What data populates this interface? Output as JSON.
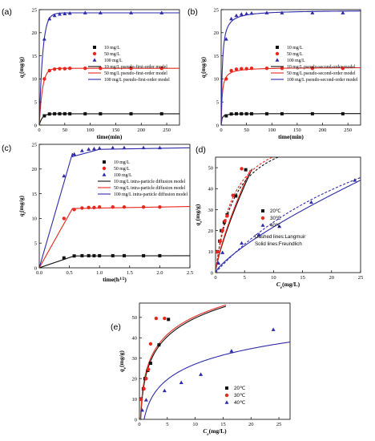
{
  "panels": {
    "a": {
      "letter": "(a)",
      "xlabel": "time(min)",
      "ylabel": "qt(mg/g)"
    },
    "b": {
      "letter": "(b)",
      "xlabel": "time(min)",
      "ylabel": "qt(mg/g)"
    },
    "c": {
      "letter": "(c)",
      "xlabel": "time(h^1/2)",
      "ylabel": "qt(mg/g)"
    },
    "d": {
      "letter": "(d)",
      "xlabel": "Ce(mg/L)",
      "ylabel": "qe(mg/g)",
      "note1": "Dashed lines:Langmuir",
      "note2": "Solid  lines:Freundlich"
    },
    "e": {
      "letter": "(e)",
      "xlabel": "Ce(mg/L)",
      "ylabel": "qe(mg/g)"
    }
  },
  "colors": {
    "black": "#111111",
    "red": "#e8281e",
    "blue": "#2d2ba8"
  },
  "chart_data": [
    {
      "id": "a",
      "type": "scatter",
      "xlim": [
        0,
        275
      ],
      "ylim": [
        0,
        25
      ],
      "xticks": [
        0,
        50,
        100,
        150,
        200,
        250
      ],
      "yticks": [
        0,
        5,
        10,
        15,
        20,
        25
      ],
      "grid": false,
      "legend": "center-right",
      "legend_entries": [
        "10 mg/L",
        "50 mg/L",
        "100 mg/L",
        "10 mg/L pseudo-first-order model",
        "50 mg/L pseudo-first-order model",
        "100 mg/L pseudo-first-order model"
      ],
      "series": [
        {
          "color": "black",
          "marker": "square",
          "x": [
            10,
            20,
            30,
            40,
            50,
            60,
            90,
            120,
            180,
            240
          ],
          "y": [
            2.0,
            2.4,
            2.45,
            2.45,
            2.45,
            2.45,
            2.45,
            2.45,
            2.45,
            2.45
          ]
        },
        {
          "color": "red",
          "marker": "circle",
          "x": [
            10,
            20,
            30,
            40,
            50,
            60,
            90,
            120,
            180,
            240
          ],
          "y": [
            10.0,
            11.8,
            12.1,
            12.2,
            12.2,
            12.3,
            12.3,
            12.3,
            12.3,
            12.3
          ]
        },
        {
          "color": "blue",
          "marker": "triangle",
          "x": [
            10,
            20,
            30,
            40,
            50,
            60,
            90,
            120,
            180,
            240
          ],
          "y": [
            18.6,
            23.0,
            23.7,
            24.0,
            24.1,
            24.2,
            24.3,
            24.3,
            24.3,
            24.3
          ]
        }
      ],
      "models": [
        {
          "color": "black",
          "kind": "pfo",
          "qe": 2.45,
          "k": 0.17
        },
        {
          "color": "red",
          "kind": "pfo",
          "qe": 12.3,
          "k": 0.16
        },
        {
          "color": "blue",
          "kind": "pfo",
          "qe": 24.3,
          "k": 0.15
        }
      ]
    },
    {
      "id": "b",
      "type": "scatter",
      "xlim": [
        0,
        275
      ],
      "ylim": [
        0,
        25
      ],
      "xticks": [
        0,
        50,
        100,
        150,
        200,
        250
      ],
      "yticks": [
        0,
        5,
        10,
        15,
        20,
        25
      ],
      "grid": false,
      "legend": "center-right",
      "legend_entries": [
        "10 mg/L",
        "50 mg/L",
        "100 mg/L",
        "10 mg/L pseudo-second-order model",
        "50 mg/L pseudo-second-order model",
        "100 mg/L pseudo-second-order model"
      ],
      "series": [
        {
          "color": "black",
          "marker": "square",
          "x": [
            10,
            20,
            30,
            40,
            50,
            60,
            90,
            120,
            180,
            240
          ],
          "y": [
            2.0,
            2.4,
            2.45,
            2.45,
            2.45,
            2.45,
            2.45,
            2.45,
            2.45,
            2.45
          ]
        },
        {
          "color": "red",
          "marker": "circle",
          "x": [
            10,
            20,
            30,
            40,
            50,
            60,
            90,
            120,
            180,
            240
          ],
          "y": [
            10.0,
            11.8,
            12.1,
            12.2,
            12.2,
            12.3,
            12.3,
            12.3,
            12.3,
            12.3
          ]
        },
        {
          "color": "blue",
          "marker": "triangle",
          "x": [
            10,
            20,
            30,
            40,
            50,
            60,
            90,
            120,
            180,
            240
          ],
          "y": [
            18.6,
            23.0,
            23.7,
            24.0,
            24.1,
            24.2,
            24.3,
            24.3,
            24.3,
            24.3
          ]
        }
      ],
      "models": [
        {
          "color": "black",
          "kind": "pso",
          "qe": 2.5,
          "k": 0.3
        },
        {
          "color": "red",
          "kind": "pso",
          "qe": 12.5,
          "k": 0.04
        },
        {
          "color": "blue",
          "kind": "pso",
          "qe": 24.9,
          "k": 0.018
        }
      ]
    },
    {
      "id": "c",
      "type": "scatter",
      "xlim": [
        0,
        2.5
      ],
      "ylim": [
        0,
        25
      ],
      "xticks": [
        0.0,
        0.5,
        1.0,
        1.5,
        2.0,
        2.5
      ],
      "yticks": [
        0,
        5,
        10,
        15,
        20,
        25
      ],
      "grid": false,
      "legend": "center-right",
      "legend_entries": [
        "10 mg/L",
        "50 mg/L",
        "100 mg/L",
        "10 mg/L intra-particle diffusion model",
        "50 mg/L intra-particle diffusion model",
        "100 mg/L intra-particle diffusion model"
      ],
      "series": [
        {
          "color": "black",
          "marker": "square",
          "x": [
            0.41,
            0.58,
            0.71,
            0.82,
            0.91,
            1.0,
            1.22,
            1.41,
            1.73,
            2.0
          ],
          "y": [
            2.0,
            2.4,
            2.45,
            2.45,
            2.45,
            2.45,
            2.45,
            2.45,
            2.45,
            2.45
          ]
        },
        {
          "color": "red",
          "marker": "circle",
          "x": [
            0.41,
            0.58,
            0.71,
            0.82,
            0.91,
            1.0,
            1.22,
            1.41,
            1.73,
            2.0
          ],
          "y": [
            10.0,
            11.8,
            12.1,
            12.2,
            12.2,
            12.3,
            12.3,
            12.3,
            12.3,
            12.3
          ]
        },
        {
          "color": "blue",
          "marker": "triangle",
          "x": [
            0.41,
            0.58,
            0.71,
            0.82,
            0.91,
            1.0,
            1.22,
            1.41,
            1.73,
            2.0
          ],
          "y": [
            18.6,
            23.0,
            23.7,
            24.0,
            24.1,
            24.2,
            24.3,
            24.3,
            24.3,
            24.3
          ]
        }
      ],
      "models": [
        {
          "color": "black",
          "kind": "poly",
          "pts": [
            [
              0,
              0
            ],
            [
              0.58,
              2.4
            ],
            [
              2.5,
              2.45
            ]
          ]
        },
        {
          "color": "red",
          "kind": "poly",
          "pts": [
            [
              0,
              0
            ],
            [
              0.55,
              12.0
            ],
            [
              2.5,
              12.4
            ]
          ]
        },
        {
          "color": "blue",
          "kind": "poly",
          "pts": [
            [
              0,
              0
            ],
            [
              0.55,
              23.2
            ],
            [
              0.55,
              22.5
            ],
            [
              1.0,
              24.0
            ],
            [
              2.5,
              24.3
            ]
          ]
        }
      ]
    },
    {
      "id": "d",
      "type": "scatter",
      "xlim": [
        0,
        25
      ],
      "ylim": [
        0,
        55
      ],
      "xticks": [
        0,
        5,
        10,
        15,
        20,
        25
      ],
      "yticks": [
        0,
        10,
        20,
        30,
        40,
        50
      ],
      "grid": false,
      "legend": "center",
      "legend_entries": [
        "20℃",
        "30℃",
        "40℃"
      ],
      "series": [
        {
          "color": "black",
          "marker": "square",
          "x": [
            0.3,
            0.7,
            1.0,
            1.5,
            2.0,
            3.5,
            5.2
          ],
          "y": [
            10.0,
            15.0,
            20.0,
            24.0,
            27.5,
            36.5,
            49.0
          ]
        },
        {
          "color": "red",
          "marker": "circle",
          "x": [
            0.3,
            0.8,
            1.2,
            1.6,
            2.0,
            3.0,
            4.5
          ],
          "y": [
            9.8,
            15.0,
            20.0,
            24.5,
            27.0,
            36.8,
            49.5
          ]
        },
        {
          "color": "blue",
          "marker": "triangle",
          "x": [
            0.5,
            1.2,
            4.5,
            7.5,
            11.0,
            16.5,
            24.0
          ],
          "y": [
            4.5,
            9.5,
            14.0,
            18.0,
            22.0,
            33.5,
            44.0
          ]
        }
      ],
      "models": [
        {
          "color": "black",
          "kind": "freundlich",
          "k": 12.0,
          "n": 1.3,
          "xmax": 6.3
        },
        {
          "color": "red",
          "kind": "freundlich",
          "k": 12.6,
          "n": 1.32,
          "xmax": 6.0
        },
        {
          "color": "blue",
          "kind": "freundlich",
          "k": 3.7,
          "n": 1.3,
          "xmax": 26
        },
        {
          "color": "black",
          "kind": "langmuir",
          "dashed": true,
          "qm": 72,
          "kl": 0.3,
          "xmax": 11.5
        },
        {
          "color": "red",
          "kind": "langmuir",
          "dashed": true,
          "qm": 72,
          "kl": 0.33,
          "xmax": 11.0
        },
        {
          "color": "blue",
          "kind": "langmuir",
          "dashed": true,
          "qm": 110,
          "kl": 0.028,
          "xmax": 26
        }
      ]
    },
    {
      "id": "e",
      "type": "scatter",
      "xlim": [
        0,
        27
      ],
      "ylim": [
        0,
        57
      ],
      "xticks": [
        0,
        5,
        10,
        15,
        20,
        25
      ],
      "yticks": [
        0,
        10,
        20,
        30,
        40,
        50
      ],
      "grid": false,
      "legend": "bottom-right",
      "legend_entries": [
        "20℃",
        "30℃",
        "40℃"
      ],
      "series": [
        {
          "color": "black",
          "marker": "square",
          "x": [
            0.3,
            0.7,
            1.0,
            1.5,
            2.0,
            3.5,
            5.2
          ],
          "y": [
            10.0,
            15.0,
            20.0,
            24.0,
            27.5,
            36.5,
            49.0
          ]
        },
        {
          "color": "red",
          "marker": "circle",
          "x": [
            0.3,
            0.8,
            1.2,
            1.6,
            2.0,
            3.0,
            4.5
          ],
          "y": [
            9.8,
            15.0,
            20.0,
            24.5,
            37.0,
            49.5,
            49.5
          ]
        },
        {
          "color": "blue",
          "marker": "triangle",
          "x": [
            0.5,
            1.2,
            4.5,
            7.5,
            11.0,
            16.5,
            24.0
          ],
          "y": [
            4.5,
            9.5,
            14.0,
            18.0,
            22.0,
            33.5,
            44.0
          ]
        }
      ],
      "models": [
        {
          "color": "black",
          "kind": "temkin",
          "a": 19.5,
          "b": 13.1,
          "xmin": 0.08,
          "xmax": 15.5
        },
        {
          "color": "red",
          "kind": "temkin",
          "a": 21.0,
          "b": 12.8,
          "xmin": 0.07,
          "xmax": 15.5
        },
        {
          "color": "blue",
          "kind": "temkin",
          "a": 2.0,
          "b": 10.9,
          "xmin": 0.8,
          "xmax": 27
        }
      ]
    }
  ]
}
